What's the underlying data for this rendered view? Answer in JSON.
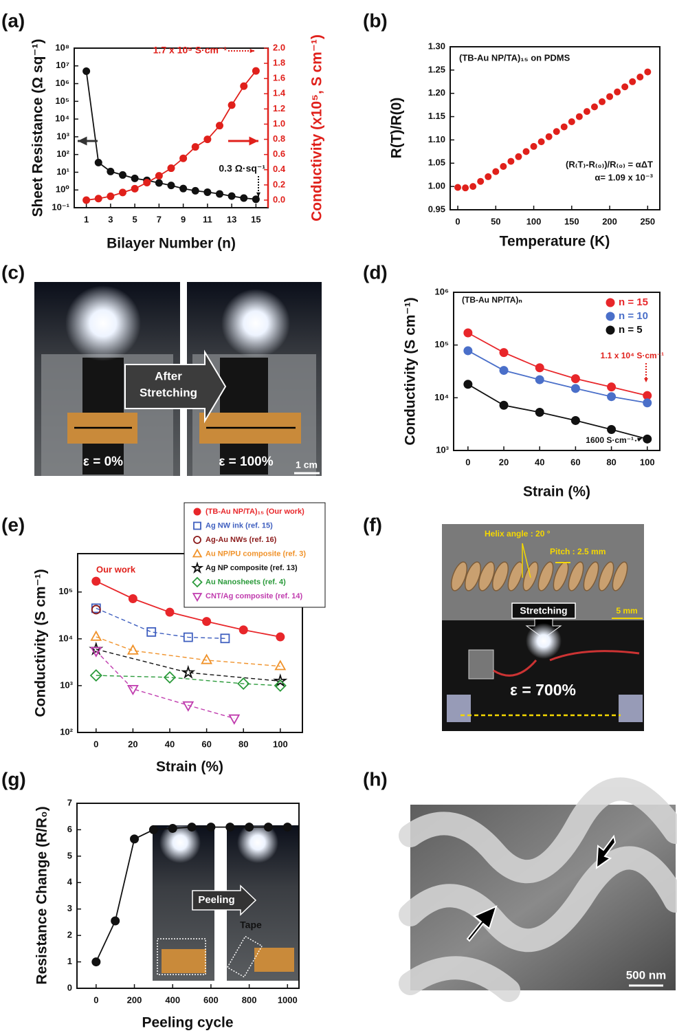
{
  "chart_data": [
    {
      "type": "line",
      "label": "(a)",
      "xlabel": "Bilayer Number (n)",
      "ylabel": "Sheet Resistance (Ω sq⁻¹)",
      "y2label": "Conductivity (x10⁵, S cm⁻¹)",
      "y2color": "#e0201b",
      "x": [
        1,
        2,
        3,
        4,
        5,
        6,
        7,
        8,
        9,
        10,
        11,
        12,
        13,
        14,
        15
      ],
      "xlim": [
        0,
        16
      ],
      "xticks": [
        1,
        3,
        5,
        7,
        9,
        11,
        13,
        15
      ],
      "yscale": "log",
      "ylim": [
        0.1,
        100000000
      ],
      "yticks": [
        {
          "value": 0.1,
          "label": "10⁻¹"
        },
        {
          "value": 1,
          "label": "10⁰"
        },
        {
          "value": 10,
          "label": "10¹"
        },
        {
          "value": 100,
          "label": "10²"
        },
        {
          "value": 1000,
          "label": "10³"
        },
        {
          "value": 10000,
          "label": "10⁴"
        },
        {
          "value": 100000,
          "label": "10⁵"
        },
        {
          "value": 1000000,
          "label": "10⁶"
        },
        {
          "value": 10000000,
          "label": "10⁷"
        },
        {
          "value": 100000000,
          "label": "10⁸"
        }
      ],
      "y2lim": [
        -0.1,
        2.0
      ],
      "y2ticks": [
        {
          "value": 0,
          "label": "0.0"
        },
        0.2,
        0.4,
        0.6,
        0.8,
        {
          "value": 1,
          "label": "1.0"
        },
        1.2,
        1.4,
        1.6,
        1.8,
        {
          "value": 2,
          "label": "2.0"
        }
      ],
      "series": [
        {
          "color": "#111111",
          "marker": "circle",
          "values": [
            5000000,
            35,
            11,
            7,
            4.5,
            3.5,
            2.5,
            1.8,
            1.2,
            0.9,
            0.75,
            0.6,
            0.45,
            0.35,
            0.3
          ]
        },
        {
          "color": "#e0201b",
          "marker": "circle",
          "axis": "y2",
          "values": [
            0.0,
            0.02,
            0.05,
            0.1,
            0.15,
            0.23,
            0.32,
            0.42,
            0.55,
            0.7,
            0.8,
            0.98,
            1.25,
            1.5,
            1.7
          ]
        }
      ],
      "annotations": [
        "1.7 x 10⁵ S·cm⁻¹",
        "0.3 Ω·sq⁻¹"
      ]
    },
    {
      "type": "scatter",
      "label": "(b)",
      "xlabel": "Temperature (K)",
      "ylabel": "R(T)/R(0)",
      "x": [
        0,
        10,
        20,
        30,
        40,
        50,
        60,
        70,
        80,
        90,
        100,
        110,
        120,
        130,
        140,
        150,
        160,
        170,
        180,
        190,
        200,
        210,
        220,
        230,
        240,
        250
      ],
      "xlim": [
        -10,
        266
      ],
      "xticks": [
        0,
        50,
        100,
        150,
        200,
        250
      ],
      "ylim": [
        0.95,
        1.3
      ],
      "yticks": [
        0.95,
        {
          "value": 1,
          "label": "1.00"
        },
        1.05,
        {
          "value": 1.1,
          "label": "1.10"
        },
        1.15,
        {
          "value": 1.2,
          "label": "1.20"
        },
        1.25,
        {
          "value": 1.3,
          "label": "1.30"
        }
      ],
      "series": [
        {
          "color": "#e0201b",
          "marker": "circle",
          "line": false,
          "values": [
            0.998,
            0.997,
            1.0,
            1.011,
            1.021,
            1.032,
            1.043,
            1.054,
            1.064,
            1.075,
            1.086,
            1.096,
            1.107,
            1.118,
            1.128,
            1.139,
            1.15,
            1.161,
            1.171,
            1.182,
            1.193,
            1.203,
            1.214,
            1.225,
            1.235,
            1.246
          ]
        }
      ],
      "annotations": [
        "(TB-Au NP/TA)₁₅ on PDMS",
        "(R₍T₎-R₍₀₎)/R₍₀₎ = αΔT",
        "α= 1.09 x 10⁻³"
      ]
    },
    {
      "type": "line",
      "label": "(d)",
      "xlabel": "Strain (%)",
      "ylabel": "Conductivity (S cm⁻¹)",
      "legend": "top-right",
      "x": [
        0,
        20,
        40,
        60,
        80,
        100
      ],
      "xlim": [
        -8,
        107
      ],
      "xticks": [
        0,
        20,
        40,
        60,
        80,
        100
      ],
      "yscale": "log",
      "ylim": [
        1000,
        1000000
      ],
      "yticks": [
        {
          "value": 1000,
          "label": "10³"
        },
        {
          "value": 10000,
          "label": "10⁴"
        },
        {
          "value": 100000,
          "label": "10⁵"
        },
        {
          "value": 1000000,
          "label": "10⁶"
        }
      ],
      "series": [
        {
          "name": "n = 15",
          "color": "#e8262a",
          "marker": "circle",
          "values": [
            170000,
            72000,
            37000,
            23000,
            16000,
            11000
          ]
        },
        {
          "name": "n = 10",
          "color": "#4a6fc9",
          "marker": "circle",
          "values": [
            78000,
            33000,
            22000,
            15000,
            10500,
            8000
          ]
        },
        {
          "name": "n = 5",
          "color": "#111111",
          "marker": "circle",
          "values": [
            18000,
            7200,
            5300,
            3700,
            2500,
            1650
          ]
        }
      ],
      "annotations": [
        "(TB-Au NP/TA)ₙ",
        "1.1 x 10⁴ S·cm⁻¹",
        "1600 S·cm⁻¹"
      ]
    },
    {
      "type": "line",
      "label": "(e)",
      "xlabel": "Strain (%)",
      "ylabel": "Conductivity (S cm⁻¹)",
      "legend": "top-right",
      "xlim": [
        -10,
        112
      ],
      "xticks": [
        0,
        20,
        40,
        60,
        80,
        100
      ],
      "yscale": "log",
      "ylim": [
        100,
        660000
      ],
      "yticks": [
        {
          "value": 100,
          "label": "10²"
        },
        {
          "value": 1000,
          "label": "10³"
        },
        {
          "value": 10000,
          "label": "10⁴"
        },
        {
          "value": 100000,
          "label": "10⁵"
        }
      ],
      "series": [
        {
          "name": "(TB-Au NP/TA)₁₅ (Our work)",
          "color": "#e8262a",
          "marker": "circle",
          "x": [
            0,
            20,
            40,
            60,
            80,
            100
          ],
          "values": [
            170000,
            72000,
            37000,
            23500,
            15500,
            11000
          ]
        },
        {
          "name": "Ag NW ink (ref. 15)",
          "color": "#3f5fbf",
          "marker": "square",
          "filled": false,
          "dash": true,
          "x": [
            0,
            30,
            50,
            70
          ],
          "values": [
            45000,
            14000,
            10800,
            10200
          ]
        },
        {
          "name": "Ag-Au NWs (ref. 16)",
          "color": "#8b1a1a",
          "marker": "circle",
          "filled": false,
          "dash": true,
          "x": [
            0
          ],
          "values": [
            42000
          ]
        },
        {
          "name": "Au NP/PU composite (ref. 3)",
          "color": "#f0922a",
          "marker": "triangle",
          "filled": false,
          "dash": true,
          "x": [
            0,
            20,
            60,
            100
          ],
          "values": [
            11000,
            5600,
            3500,
            2600
          ]
        },
        {
          "name": "Ag NP composite (ref. 13)",
          "color": "#111111",
          "marker": "star",
          "filled": false,
          "dash": true,
          "x": [
            0,
            50,
            100
          ],
          "values": [
            6000,
            1900,
            1250
          ]
        },
        {
          "name": "Au Nanosheets (ref. 4)",
          "color": "#2a9a3a",
          "marker": "diamond",
          "filled": false,
          "dash": true,
          "x": [
            0,
            40,
            80,
            100
          ],
          "values": [
            1650,
            1500,
            1100,
            1000
          ]
        },
        {
          "name": "CNT/Ag composite (ref. 14)",
          "color": "#c03cae",
          "marker": "triangle-down",
          "filled": false,
          "dash": true,
          "x": [
            0,
            20,
            50,
            75
          ],
          "values": [
            5500,
            850,
            380,
            200
          ]
        }
      ],
      "annotations": [
        "Our work"
      ]
    },
    {
      "type": "line",
      "label": "(g)",
      "xlabel": "Peeling cycle",
      "ylabel": "Resistance Change (R/R₀)",
      "x": [
        0,
        100,
        200,
        300,
        400,
        500,
        600,
        700,
        800,
        900,
        1000
      ],
      "xlim": [
        -100,
        1060
      ],
      "xticks": [
        0,
        200,
        400,
        600,
        800,
        1000
      ],
      "ylim": [
        0,
        7
      ],
      "yticks": [
        0,
        1,
        2,
        3,
        4,
        5,
        6,
        7
      ],
      "series": [
        {
          "color": "#111111",
          "marker": "circle",
          "values": [
            1,
            2.55,
            5.65,
            6.0,
            6.05,
            6.1,
            6.1,
            6.1,
            6.1,
            6.1,
            6.1
          ]
        }
      ],
      "annotations": [
        "Peeling",
        "Tape"
      ]
    }
  ],
  "photo_c": {
    "label": "(c)",
    "arrow_text": [
      "After",
      "Stretching"
    ],
    "left_strain": "ε = 0%",
    "right_strain": "ε = 100%",
    "scale_bar": "1 cm"
  },
  "photo_f": {
    "label": "(f)",
    "helix_angle": "Helix angle : 20 °",
    "pitch": "Pitch : 2.5 mm",
    "arrow_text": "Stretching",
    "scale_bar": "5 mm",
    "strain": "ε = 700%"
  },
  "photo_h": {
    "label": "(h)",
    "scale_bar": "500 nm"
  }
}
